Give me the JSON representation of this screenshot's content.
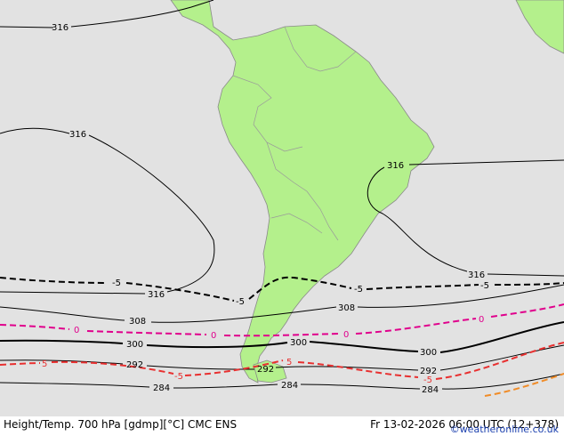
{
  "footer": {
    "title": "Height/Temp. 700 hPa [gdmp][°C] CMC ENS",
    "datetime": "Fr 13-02-2026 06:00 UTC (12+378)"
  },
  "credit": "©weatheronline.co.uk",
  "contour_labels": {
    "h316_a": "316",
    "h316_b": "316",
    "h316_c": "316",
    "h316_d": "316",
    "h316_e": "316",
    "h308_a": "308",
    "h308_b": "308",
    "h300_a": "300",
    "h300_b": "300",
    "h300_c": "300",
    "h292_a": "292",
    "h292_b": "292",
    "h292_c": "292",
    "h284_a": "284",
    "h284_b": "284",
    "h284_c": "284",
    "t_m5_a": "-5",
    "t_m5_b": "-5",
    "t_m5_c": "-5",
    "t_m5_d": "-5",
    "t_0_a": "0",
    "t_0_b": "0",
    "t_0_c": "0",
    "t_0_d": "0",
    "t_5_a": "5",
    "t_5_b": "-5",
    "t_5_c": "5",
    "t_5_d": "-5"
  },
  "colors": {
    "land": "#b4f08c",
    "sea": "#e2e2e2",
    "height_contour": "#000000",
    "temp_minus5": "#000000",
    "temp_0": "#e0008c",
    "temp_5": "#e83030",
    "temp_10": "#f08c28"
  }
}
